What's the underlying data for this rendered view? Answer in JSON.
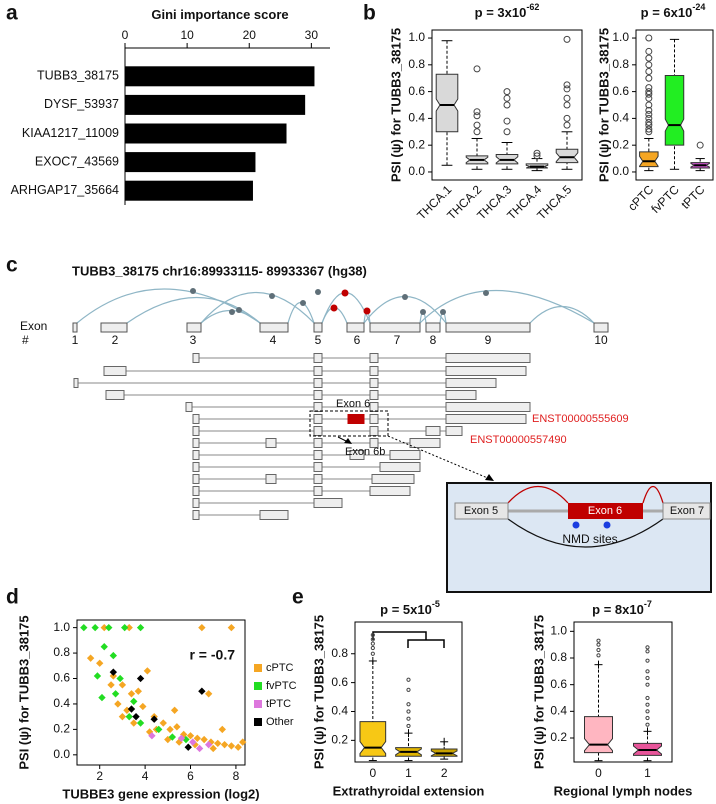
{
  "panel_labels": [
    "a",
    "b",
    "c",
    "d",
    "e"
  ],
  "chart_data": [
    {
      "type": "bar",
      "orientation": "horizontal",
      "title": "Gini importance score",
      "categories": [
        "TUBB3_38175",
        "DYSF_53937",
        "KIAA1217_11009",
        "EXOC7_43569",
        "ARHGAP17_35664"
      ],
      "values": [
        30.5,
        29,
        26,
        21,
        20.6
      ],
      "color": "#000000",
      "xlim": [
        0,
        33
      ],
      "xticks": [
        0,
        10,
        20,
        30
      ]
    },
    {
      "type": "box",
      "title": "p = 3x10",
      "title_exponent": "-62",
      "ylabel": "PSI (ψ) for TUBB3_38175",
      "categories": [
        "THCA.1",
        "THCA.2",
        "THCA.3",
        "THCA.4",
        "THCA.5"
      ],
      "colors": [
        "#d9d9d9",
        "#d9d9d9",
        "#d9d9d9",
        "#d9d9d9",
        "#d9d9d9"
      ],
      "boxes": [
        [
          0.05,
          0.3,
          0.5,
          0.73,
          0.98
        ],
        [
          0.02,
          0.06,
          0.09,
          0.12,
          0.25
        ],
        [
          0.02,
          0.06,
          0.09,
          0.13,
          0.22
        ],
        [
          0.01,
          0.03,
          0.04,
          0.06,
          0.1
        ],
        [
          0.02,
          0.07,
          0.11,
          0.17,
          0.3
        ]
      ],
      "outliers": [
        [],
        [
          0.3,
          0.35,
          0.42,
          0.45,
          0.77
        ],
        [
          0.3,
          0.38,
          0.5,
          0.55,
          0.6
        ],
        [
          0.12,
          0.14
        ],
        [
          0.35,
          0.4,
          0.5,
          0.55,
          0.62,
          0.65,
          0.99
        ]
      ],
      "ylim": [
        -0.06,
        1.06
      ],
      "yticks": [
        {
          "value": 0,
          "label": "0.0"
        },
        0.2,
        0.4,
        0.6,
        0.8,
        {
          "value": 1,
          "label": "1.0"
        }
      ],
      "whisker_cap": "line"
    },
    {
      "type": "box",
      "title": "p = 6x10",
      "title_exponent": "-24",
      "ylabel": "PSI (ψ) for TUBB3_38175",
      "categories": [
        "cPTC",
        "fvPTC",
        "tPTC"
      ],
      "colors": [
        "#f5a623",
        "#22ee22",
        "#cc55cc"
      ],
      "boxes": [
        [
          0.01,
          0.04,
          0.08,
          0.15,
          0.25
        ],
        [
          0.02,
          0.2,
          0.35,
          0.72,
          0.99
        ],
        [
          0.01,
          0.03,
          0.05,
          0.07,
          0.1
        ]
      ],
      "outliers": [
        [
          0.3,
          0.32,
          0.35,
          0.37,
          0.4,
          0.43,
          0.46,
          0.5,
          0.55,
          0.58,
          0.6,
          0.63,
          0.7,
          0.75,
          0.8,
          0.85,
          0.9,
          1.0
        ],
        [],
        [
          0.2
        ]
      ],
      "ylim": [
        -0.06,
        1.06
      ],
      "yticks": [
        {
          "value": 0,
          "label": "0.0"
        },
        0.2,
        0.4,
        0.6,
        0.8,
        {
          "value": 1,
          "label": "1.0"
        }
      ],
      "whisker_cap": "line"
    },
    {
      "type": "scatter",
      "annotation": "r = -0.7",
      "ylabel": "PSI (ψ) for TUBB3_38175",
      "xlabel": "TUBBE3 gene expression (log2)",
      "series": [
        {
          "name": "cPTC",
          "color": "#f5a623",
          "x": [
            2.2,
            3.3,
            6.5,
            7.8,
            1.6,
            2.0,
            2.6,
            3.0,
            3.4,
            3.7,
            4.1,
            2.8,
            3.2,
            3.9,
            4.4,
            4.8,
            5.1,
            5.4,
            5.7,
            6.0,
            6.3,
            6.6,
            6.9,
            7.2,
            7.5,
            7.8,
            8.1,
            4.5,
            5.0,
            5.5,
            6.2,
            7.0,
            3.5,
            4.2,
            3.0,
            2.5,
            6.8,
            5.3,
            7.4,
            8.3
          ],
          "values": [
            1.0,
            1.0,
            1.0,
            1.0,
            0.76,
            0.72,
            0.62,
            0.55,
            0.48,
            0.5,
            0.66,
            0.4,
            0.35,
            0.38,
            0.3,
            0.25,
            0.2,
            0.22,
            0.16,
            0.15,
            0.13,
            0.12,
            0.1,
            0.09,
            0.08,
            0.07,
            0.06,
            0.2,
            0.12,
            0.1,
            0.08,
            0.05,
            0.25,
            0.18,
            0.3,
            0.55,
            0.48,
            0.35,
            0.2,
            0.1
          ]
        },
        {
          "name": "fvPTC",
          "color": "#22dd22",
          "x": [
            1.3,
            1.8,
            2.4,
            3.1,
            3.8,
            2.2,
            2.6,
            1.9,
            2.9,
            2.1,
            2.7,
            3.5,
            3.3,
            3.8,
            4.6,
            5.2,
            5.8
          ],
          "values": [
            1.0,
            1.0,
            1.0,
            1.0,
            1.0,
            0.85,
            0.78,
            0.62,
            0.6,
            0.45,
            0.48,
            0.42,
            0.3,
            0.25,
            0.2,
            0.14,
            0.12
          ]
        },
        {
          "name": "tPTC",
          "color": "#dd77dd",
          "x": [
            4.3,
            5.6,
            6.1,
            6.8,
            6.4
          ],
          "values": [
            0.15,
            0.13,
            0.1,
            0.08,
            0.05
          ]
        },
        {
          "name": "Other",
          "color": "#000000",
          "x": [
            2.6,
            3.8,
            3.4,
            3.6,
            4.4,
            6.5,
            5.9
          ],
          "values": [
            0.65,
            0.6,
            0.36,
            0.3,
            0.28,
            0.5,
            0.06
          ]
        }
      ],
      "xlim": [
        1,
        8.4
      ],
      "xticks": [
        2,
        4,
        6,
        8
      ],
      "ylim": [
        -0.08,
        1.06
      ],
      "yticks": [
        {
          "value": 0,
          "label": "0.0"
        },
        0.2,
        0.4,
        0.6,
        0.8,
        {
          "value": 1,
          "label": "1.0"
        }
      ]
    },
    {
      "type": "box",
      "title": "p = 5x10",
      "title_exponent": "-5",
      "ylabel": "PSI (ψ) for TUBB3_38175",
      "xlabel": "Extrathyroidal extension",
      "categories": [
        "0",
        "1",
        "2"
      ],
      "colors": [
        "#f7c815",
        "#e0b400",
        "#c8a200"
      ],
      "boxes": [
        [
          0.06,
          0.09,
          0.15,
          0.33,
          0.75
        ],
        [
          0.06,
          0.09,
          0.12,
          0.15,
          0.25
        ],
        [
          0.07,
          0.09,
          0.11,
          0.14,
          0.19
        ]
      ],
      "outliers": [
        [
          0.8,
          0.84,
          0.87,
          0.9,
          0.93
        ],
        [
          0.3,
          0.35,
          0.4,
          0.45,
          0.55,
          0.62
        ],
        []
      ],
      "ylim": [
        0.05,
        1.02
      ],
      "yticks": [
        0.2,
        0.4,
        0.6,
        0.8
      ],
      "whisker_cap": "plus"
    },
    {
      "type": "box",
      "title": "p = 8x10",
      "title_exponent": "-7",
      "ylabel": "PSI (ψ) for TUBB3_38175",
      "xlabel": "Regional lymph nodes",
      "categories": [
        "0",
        "1"
      ],
      "colors": [
        "#ffb6c1",
        "#e8559a"
      ],
      "boxes": [
        [
          0.03,
          0.09,
          0.15,
          0.36,
          0.75
        ],
        [
          0.03,
          0.07,
          0.11,
          0.16,
          0.25
        ]
      ],
      "outliers": [
        [
          0.82,
          0.86,
          0.9,
          0.93
        ],
        [
          0.3,
          0.35,
          0.4,
          0.45,
          0.5,
          0.6,
          0.65,
          0.7,
          0.78,
          0.85,
          0.88
        ]
      ],
      "ylim": [
        0.02,
        1.07
      ],
      "yticks": [
        0.2,
        0.4,
        0.6,
        0.8,
        {
          "value": 1,
          "label": "1.0"
        }
      ],
      "whisker_cap": "plus"
    }
  ],
  "diagram": {
    "title": "TUBB3_38175 chr16:89933115- 89933367 (hg38)",
    "exon_axis_label": [
      "Exon",
      "#"
    ],
    "exon_numbers": [
      "1",
      "2",
      "3",
      "4",
      "5",
      "6",
      "7",
      "8",
      "9",
      "10"
    ],
    "callouts": [
      "Exon 6",
      "Exon 6b"
    ],
    "transcripts": [
      "ENST00000555609",
      "ENST00000557490"
    ],
    "inset": {
      "labels": [
        "Exon 5",
        "Exon 6",
        "Exon 7"
      ],
      "note": "NMD sites"
    }
  }
}
